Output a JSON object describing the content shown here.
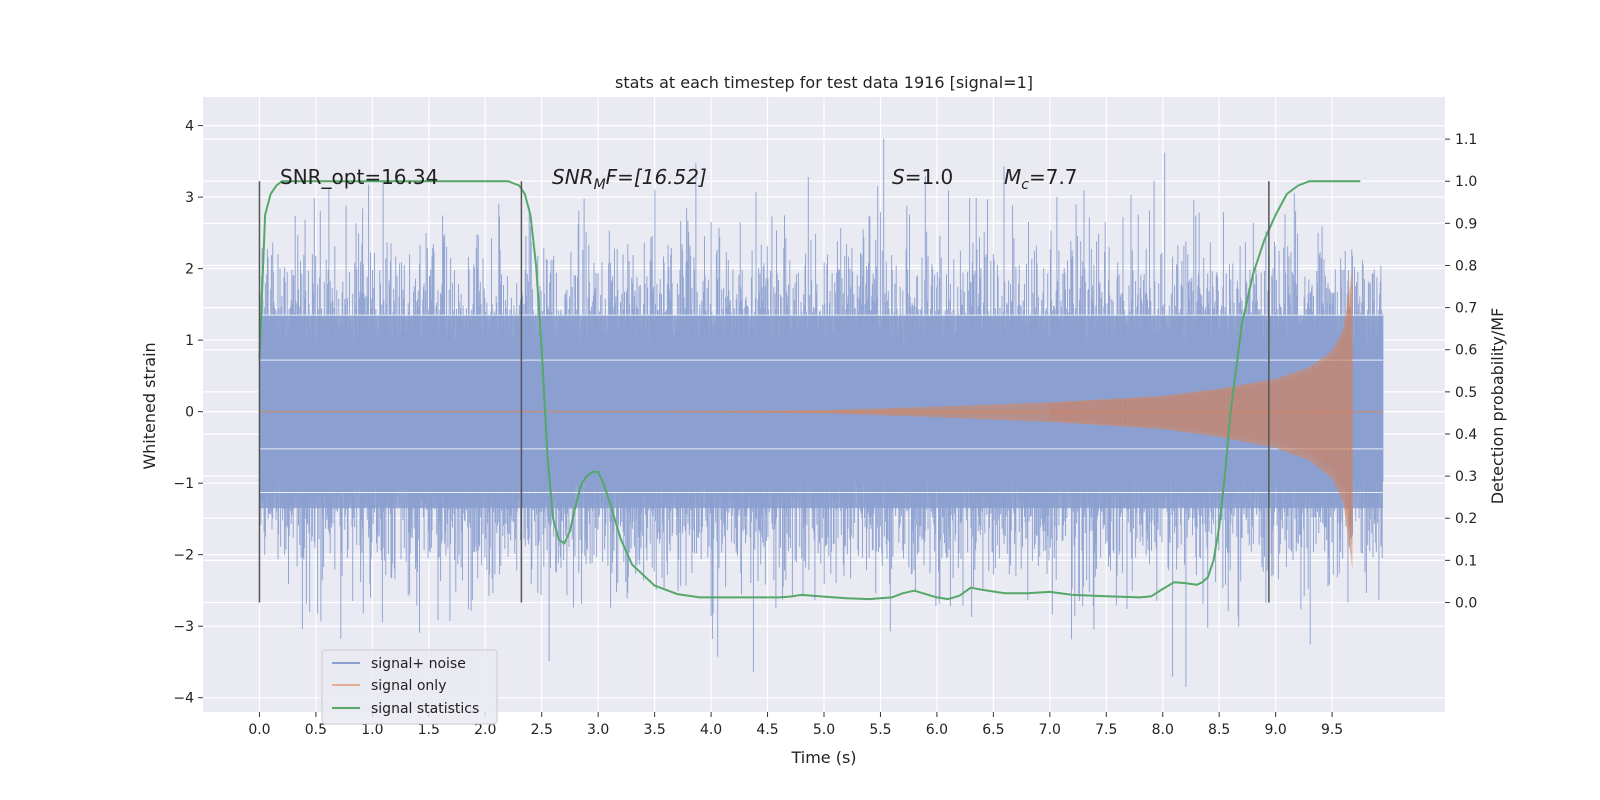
{
  "chart_data": {
    "type": "line",
    "title": "stats at each timestep for test data 1916 [signal=1]",
    "xlabel": "Time (s)",
    "ylabel": "Whitened strain",
    "y2label": "Detection probability/MF",
    "xlim": [
      -0.5,
      10.5
    ],
    "ylim": [
      -4.2,
      4.4
    ],
    "y2lim": [
      -0.26,
      1.2
    ],
    "x_ticks": [
      "0.0",
      "0.5",
      "1.0",
      "1.5",
      "2.0",
      "2.5",
      "3.0",
      "3.5",
      "4.0",
      "4.5",
      "5.0",
      "5.5",
      "6.0",
      "6.5",
      "7.0",
      "7.5",
      "8.0",
      "8.5",
      "9.0",
      "9.5"
    ],
    "y_ticks": [
      "4",
      "3",
      "2",
      "1",
      "0",
      "−1",
      "−2",
      "−3",
      "−4"
    ],
    "y2_ticks": [
      "1.1",
      "1.0",
      "0.9",
      "0.8",
      "0.7",
      "0.6",
      "0.5",
      "0.4",
      "0.3",
      "0.2",
      "0.1",
      "0.0"
    ],
    "grid": true,
    "legend_position": "lower-left",
    "annotations": {
      "snr_opt": "SNR_opt=16.34",
      "snr_mf_main": "SNR",
      "snr_mf_sub": "M",
      "snr_mf_rest": "F=[16.52]",
      "s_main": "S",
      "s_rest": "=1.0",
      "mc_main": "M",
      "mc_sub": "c",
      "mc_rest": "=7.7"
    },
    "vertical_markers_x": [
      0.0,
      2.32,
      8.94
    ],
    "vertical_marker_range_y2": [
      0.0,
      1.0
    ],
    "series": [
      {
        "name": "signal+ noise",
        "color": "#8a9fcf",
        "axis": "left",
        "x_range": [
          0.0,
          9.95
        ],
        "noise_envelope": {
          "core_sigma": 1.0,
          "typical_max": 2.5,
          "peak_max": 4.05,
          "peak_min": -3.85
        }
      },
      {
        "name": "signal only",
        "color": "#dd8452",
        "axis": "left",
        "chirp": {
          "t_start": 5.0,
          "t_end": 9.68,
          "amplitude_at_end": 2.0,
          "points": [
            [
              5.0,
              0.02
            ],
            [
              6.0,
              0.07
            ],
            [
              7.0,
              0.13
            ],
            [
              8.0,
              0.22
            ],
            [
              8.5,
              0.32
            ],
            [
              9.0,
              0.46
            ],
            [
              9.3,
              0.62
            ],
            [
              9.5,
              0.85
            ],
            [
              9.6,
              1.15
            ],
            [
              9.68,
              2.0
            ]
          ]
        }
      },
      {
        "name": "signal statistics",
        "color": "#55a868",
        "axis": "right",
        "x": [
          0.0,
          0.05,
          0.1,
          0.15,
          0.2,
          0.3,
          0.5,
          1.0,
          1.5,
          2.0,
          2.2,
          2.3,
          2.35,
          2.4,
          2.45,
          2.5,
          2.55,
          2.6,
          2.65,
          2.7,
          2.75,
          2.8,
          2.85,
          2.9,
          2.95,
          3.0,
          3.05,
          3.1,
          3.2,
          3.3,
          3.5,
          3.7,
          3.9,
          4.0,
          4.2,
          4.4,
          4.6,
          4.7,
          4.8,
          5.0,
          5.2,
          5.4,
          5.6,
          5.7,
          5.8,
          6.0,
          6.1,
          6.2,
          6.3,
          6.4,
          6.6,
          6.8,
          7.0,
          7.2,
          7.5,
          7.8,
          7.9,
          8.0,
          8.1,
          8.2,
          8.3,
          8.35,
          8.4,
          8.45,
          8.5,
          8.55,
          8.6,
          8.7,
          8.8,
          8.9,
          9.0,
          9.1,
          9.2,
          9.3,
          9.5,
          9.75
        ],
        "y": [
          0.58,
          0.92,
          0.97,
          0.99,
          1.0,
          1.0,
          1.0,
          1.0,
          1.0,
          1.0,
          1.0,
          0.99,
          0.97,
          0.92,
          0.8,
          0.6,
          0.35,
          0.2,
          0.15,
          0.14,
          0.17,
          0.23,
          0.28,
          0.3,
          0.31,
          0.31,
          0.28,
          0.24,
          0.15,
          0.09,
          0.04,
          0.02,
          0.012,
          0.012,
          0.012,
          0.012,
          0.012,
          0.014,
          0.018,
          0.014,
          0.01,
          0.008,
          0.012,
          0.022,
          0.028,
          0.012,
          0.008,
          0.016,
          0.035,
          0.03,
          0.022,
          0.022,
          0.025,
          0.018,
          0.015,
          0.012,
          0.015,
          0.032,
          0.048,
          0.046,
          0.042,
          0.048,
          0.06,
          0.1,
          0.18,
          0.3,
          0.45,
          0.66,
          0.78,
          0.86,
          0.92,
          0.97,
          0.99,
          1.0,
          1.0,
          1.0
        ]
      }
    ]
  }
}
